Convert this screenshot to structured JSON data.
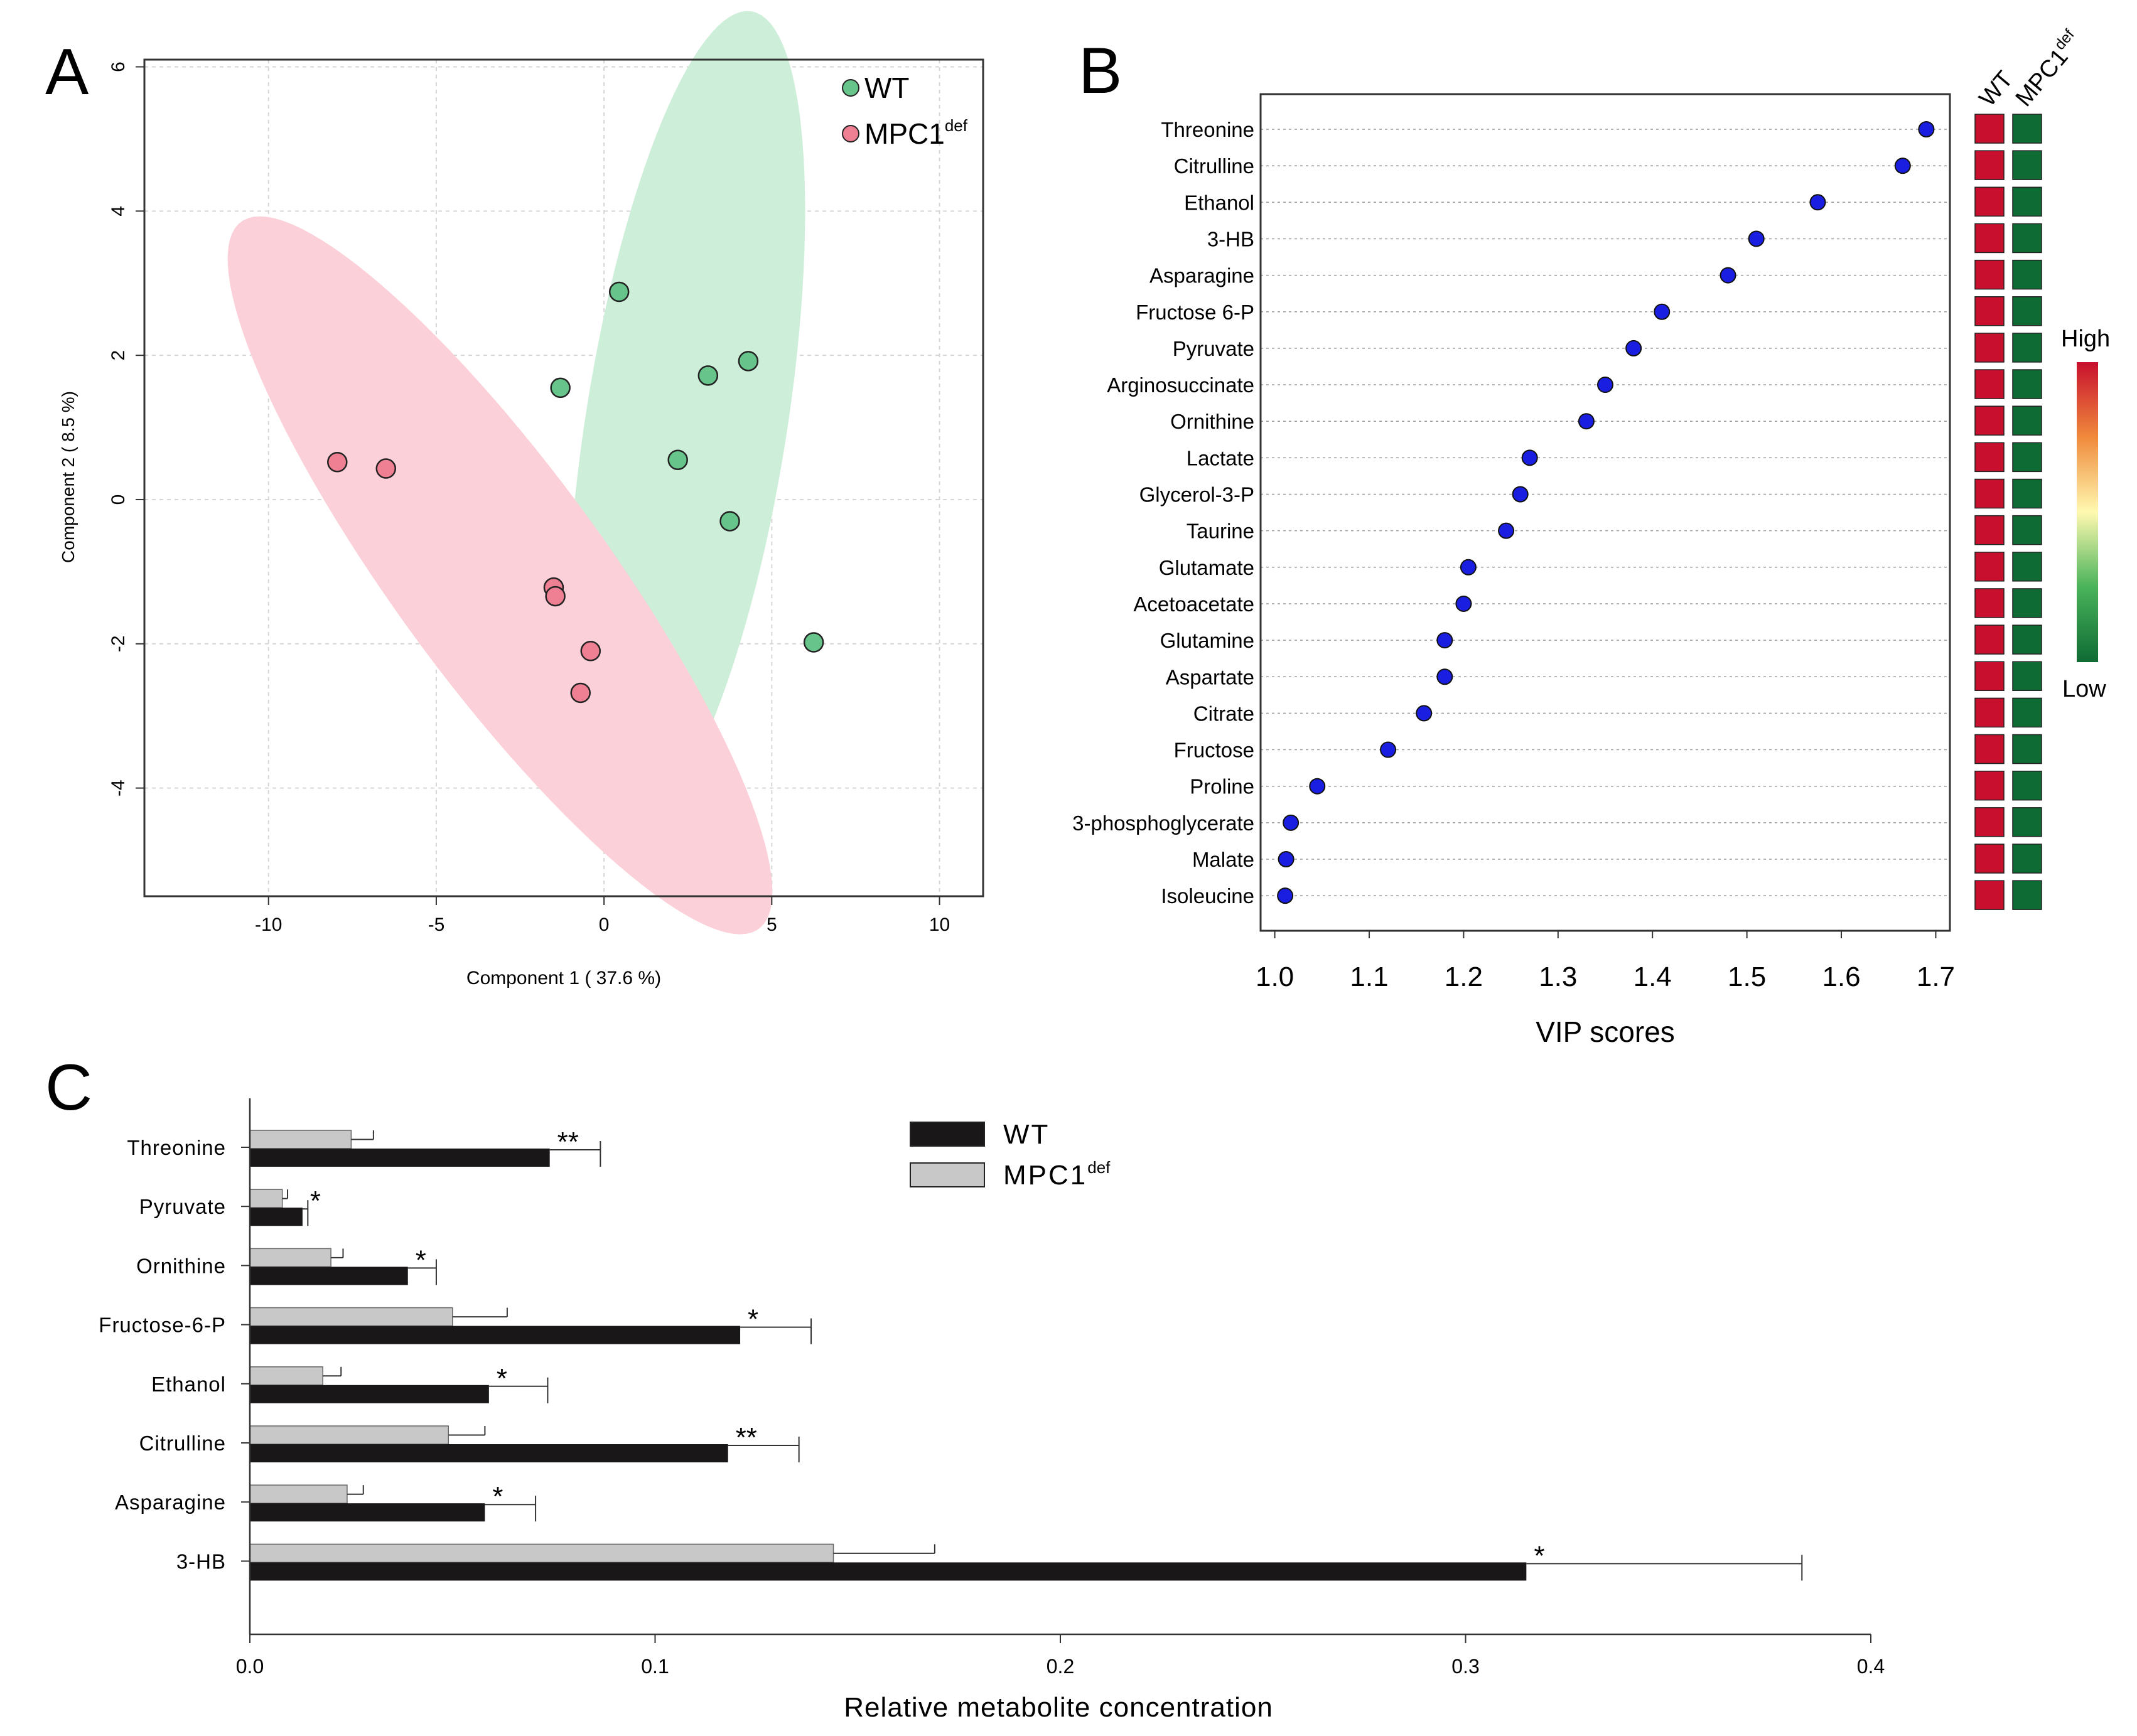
{
  "panels": {
    "a": "A",
    "b": "B",
    "c": "C"
  },
  "chart_data": [
    {
      "panel": "A",
      "type": "scatter",
      "title": "",
      "xlabel": "Component 1 ( 37.6 %)",
      "ylabel": "Component 2 ( 8.5 %)",
      "xlim": [
        -13.7,
        11.3
      ],
      "ylim": [
        -5.5,
        6.1
      ],
      "xticks": [
        "-10",
        "-5",
        "0",
        "5",
        "10"
      ],
      "xtick_values": [
        -10,
        -5,
        0,
        5,
        10
      ],
      "yticks": [
        "6",
        "4",
        "2",
        "0",
        "-2",
        "-4"
      ],
      "ytick_values": [
        6,
        4,
        2,
        0,
        -2,
        -4
      ],
      "grid": true,
      "legend_position": "top-right",
      "series": [
        {
          "name": "WT",
          "label_main": "WT",
          "label_sup": "",
          "color": "#67c48a",
          "ellipse_color": "#cdeed9",
          "points": [
            [
              0.45,
              2.88
            ],
            [
              -1.3,
              1.55
            ],
            [
              3.1,
              1.72
            ],
            [
              4.3,
              1.92
            ],
            [
              2.2,
              0.55
            ],
            [
              3.75,
              -0.3
            ],
            [
              6.25,
              -1.98
            ]
          ],
          "ellipse": {
            "cx": 2.45,
            "cy": 1.05,
            "a": 6.1,
            "b": 2.85,
            "angle_deg": 67
          }
        },
        {
          "name": "MPC1def",
          "label_main": "MPC1",
          "label_sup": "def",
          "color": "#ef7f93",
          "ellipse_color": "#fbd0d9",
          "points": [
            [
              -7.95,
              0.52
            ],
            [
              -6.5,
              0.43
            ],
            [
              -1.5,
              -1.22
            ],
            [
              -1.45,
              -1.34
            ],
            [
              -0.4,
              -2.1
            ],
            [
              -0.7,
              -2.68
            ]
          ],
          "ellipse": {
            "cx": -3.1,
            "cy": -1.05,
            "a": 9.3,
            "b": 2.05,
            "angle_deg": -30
          }
        }
      ]
    },
    {
      "panel": "B",
      "type": "scatter",
      "title": "",
      "xlabel": "VIP scores",
      "xlim": [
        0.985,
        1.715
      ],
      "xticks": [
        "1.0",
        "1.1",
        "1.2",
        "1.3",
        "1.4",
        "1.5",
        "1.6",
        "1.7"
      ],
      "xtick_values": [
        1.0,
        1.1,
        1.2,
        1.3,
        1.4,
        1.5,
        1.6,
        1.7
      ],
      "categories": [
        "Threonine",
        "Citrulline",
        "Ethanol",
        "3-HB",
        "Asparagine",
        "Fructose 6-P",
        "Pyruvate",
        "Arginosuccinate",
        "Ornithine",
        "Lactate",
        "Glycerol-3-P",
        "Taurine",
        "Glutamate",
        "Acetoacetate",
        "Glutamine",
        "Aspartate",
        "Citrate",
        "Fructose",
        "Proline",
        "3-phosphoglycerate",
        "Malate",
        "Isoleucine"
      ],
      "values": [
        1.69,
        1.665,
        1.575,
        1.51,
        1.48,
        1.41,
        1.38,
        1.35,
        1.33,
        1.27,
        1.26,
        1.245,
        1.205,
        1.2,
        1.18,
        1.18,
        1.158,
        1.12,
        1.045,
        1.017,
        1.012,
        1.011
      ],
      "point_color": "#1a1ee0",
      "heatmap": {
        "columns_main": [
          "WT",
          "MPC1"
        ],
        "columns_sup": [
          "",
          "def"
        ],
        "cell_colors": [
          "#c8102e",
          "#0e6b34"
        ],
        "scale_high": "High",
        "scale_low": "Low",
        "scale_colors": [
          "#c8102e",
          "#f08a3c",
          "#fff9b0",
          "#49b35a",
          "#0e6b34"
        ]
      }
    },
    {
      "panel": "C",
      "type": "bar",
      "orientation": "horizontal",
      "title": "",
      "xlabel": "Relative metabolite concentration",
      "xlim": [
        0.0,
        0.4
      ],
      "xticks": [
        "0.0",
        "0.1",
        "0.2",
        "0.3",
        "0.4"
      ],
      "xtick_values": [
        0.0,
        0.1,
        0.2,
        0.3,
        0.4
      ],
      "categories": [
        "Threonine",
        "Pyruvate",
        "Ornithine",
        "Fructose-6-P",
        "Ethanol",
        "Citrulline",
        "Asparagine",
        "3-HB"
      ],
      "legend_position": "top-center",
      "series": [
        {
          "name": "WT",
          "label_main": "WT",
          "label_sup": "",
          "color": "#1a1718",
          "values": [
            0.074,
            0.013,
            0.039,
            0.121,
            0.059,
            0.118,
            0.058,
            0.315
          ],
          "errors": [
            0.0125,
            0.0013,
            0.007,
            0.0175,
            0.0145,
            0.0175,
            0.0125,
            0.068
          ]
        },
        {
          "name": "MPC1def",
          "label_main": "MPC1",
          "label_sup": "def",
          "color": "#c8c8c8",
          "values": [
            0.025,
            0.008,
            0.02,
            0.05,
            0.018,
            0.049,
            0.024,
            0.144
          ],
          "errors": [
            0.0055,
            0.0013,
            0.003,
            0.0135,
            0.0045,
            0.009,
            0.004,
            0.025
          ]
        }
      ],
      "significance": [
        "**",
        "*",
        "*",
        "*",
        "*",
        "**",
        "*",
        "*"
      ]
    }
  ]
}
